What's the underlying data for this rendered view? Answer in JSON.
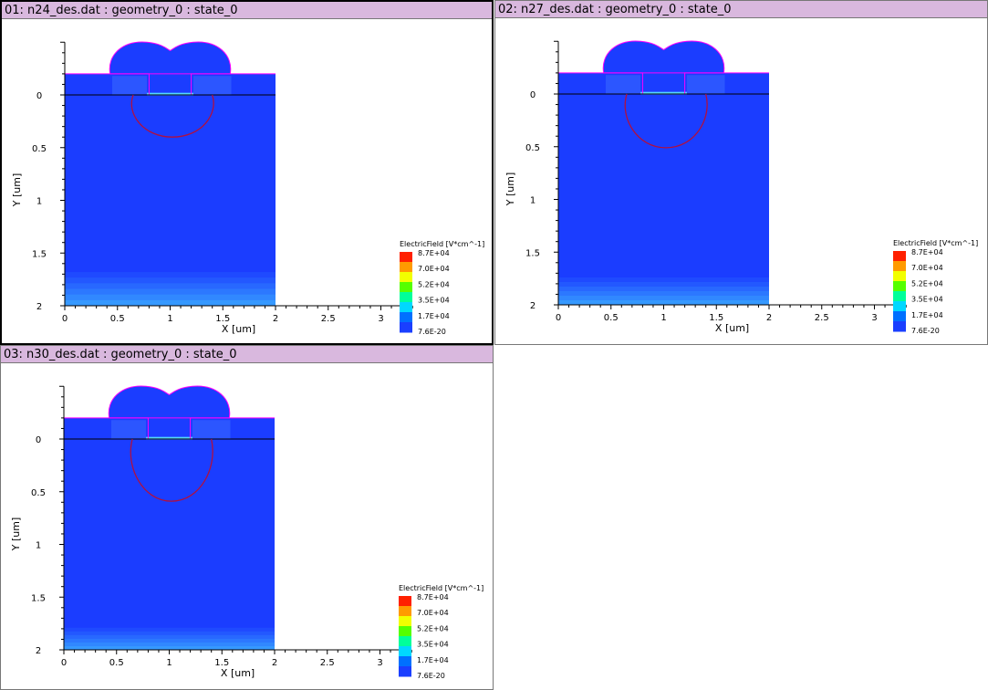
{
  "panels": [
    {
      "title": "01: n24_des.dat : geometry_0 : state_0",
      "junction_depth_um": 0.4,
      "bottom_band_um": 1.68
    },
    {
      "title": "02: n27_des.dat : geometry_0 : state_0",
      "junction_depth_um": 0.51,
      "bottom_band_um": 1.74
    },
    {
      "title": "03: n30_des.dat : geometry_0 : state_0",
      "junction_depth_um": 0.59,
      "bottom_band_um": 1.79
    }
  ],
  "axes": {
    "xlabel": "X [um]",
    "ylabel": "Y [um]",
    "xticks": [
      "0",
      "0.5",
      "1",
      "1.5",
      "2",
      "2.5",
      "3"
    ],
    "yticks": [
      "0",
      "0.5",
      "1",
      "1.5",
      "2"
    ]
  },
  "legend": {
    "title": "ElectricField [V*cm^-1]",
    "labels": [
      "8.7E+04",
      "7.0E+04",
      "5.2E+04",
      "3.5E+04",
      "1.7E+04",
      "7.6E-20"
    ],
    "colors": [
      "#ff2000",
      "#ff9a00",
      "#f2ff00",
      "#55ff00",
      "#00ff9a",
      "#00d8ff",
      "#0070ff",
      "#1a3fff"
    ]
  },
  "colors": {
    "background_field": "#1b3dff",
    "device_outline": "#ff00ff",
    "junction_line": "#b01040",
    "titlebar": "#d9b8de"
  }
}
